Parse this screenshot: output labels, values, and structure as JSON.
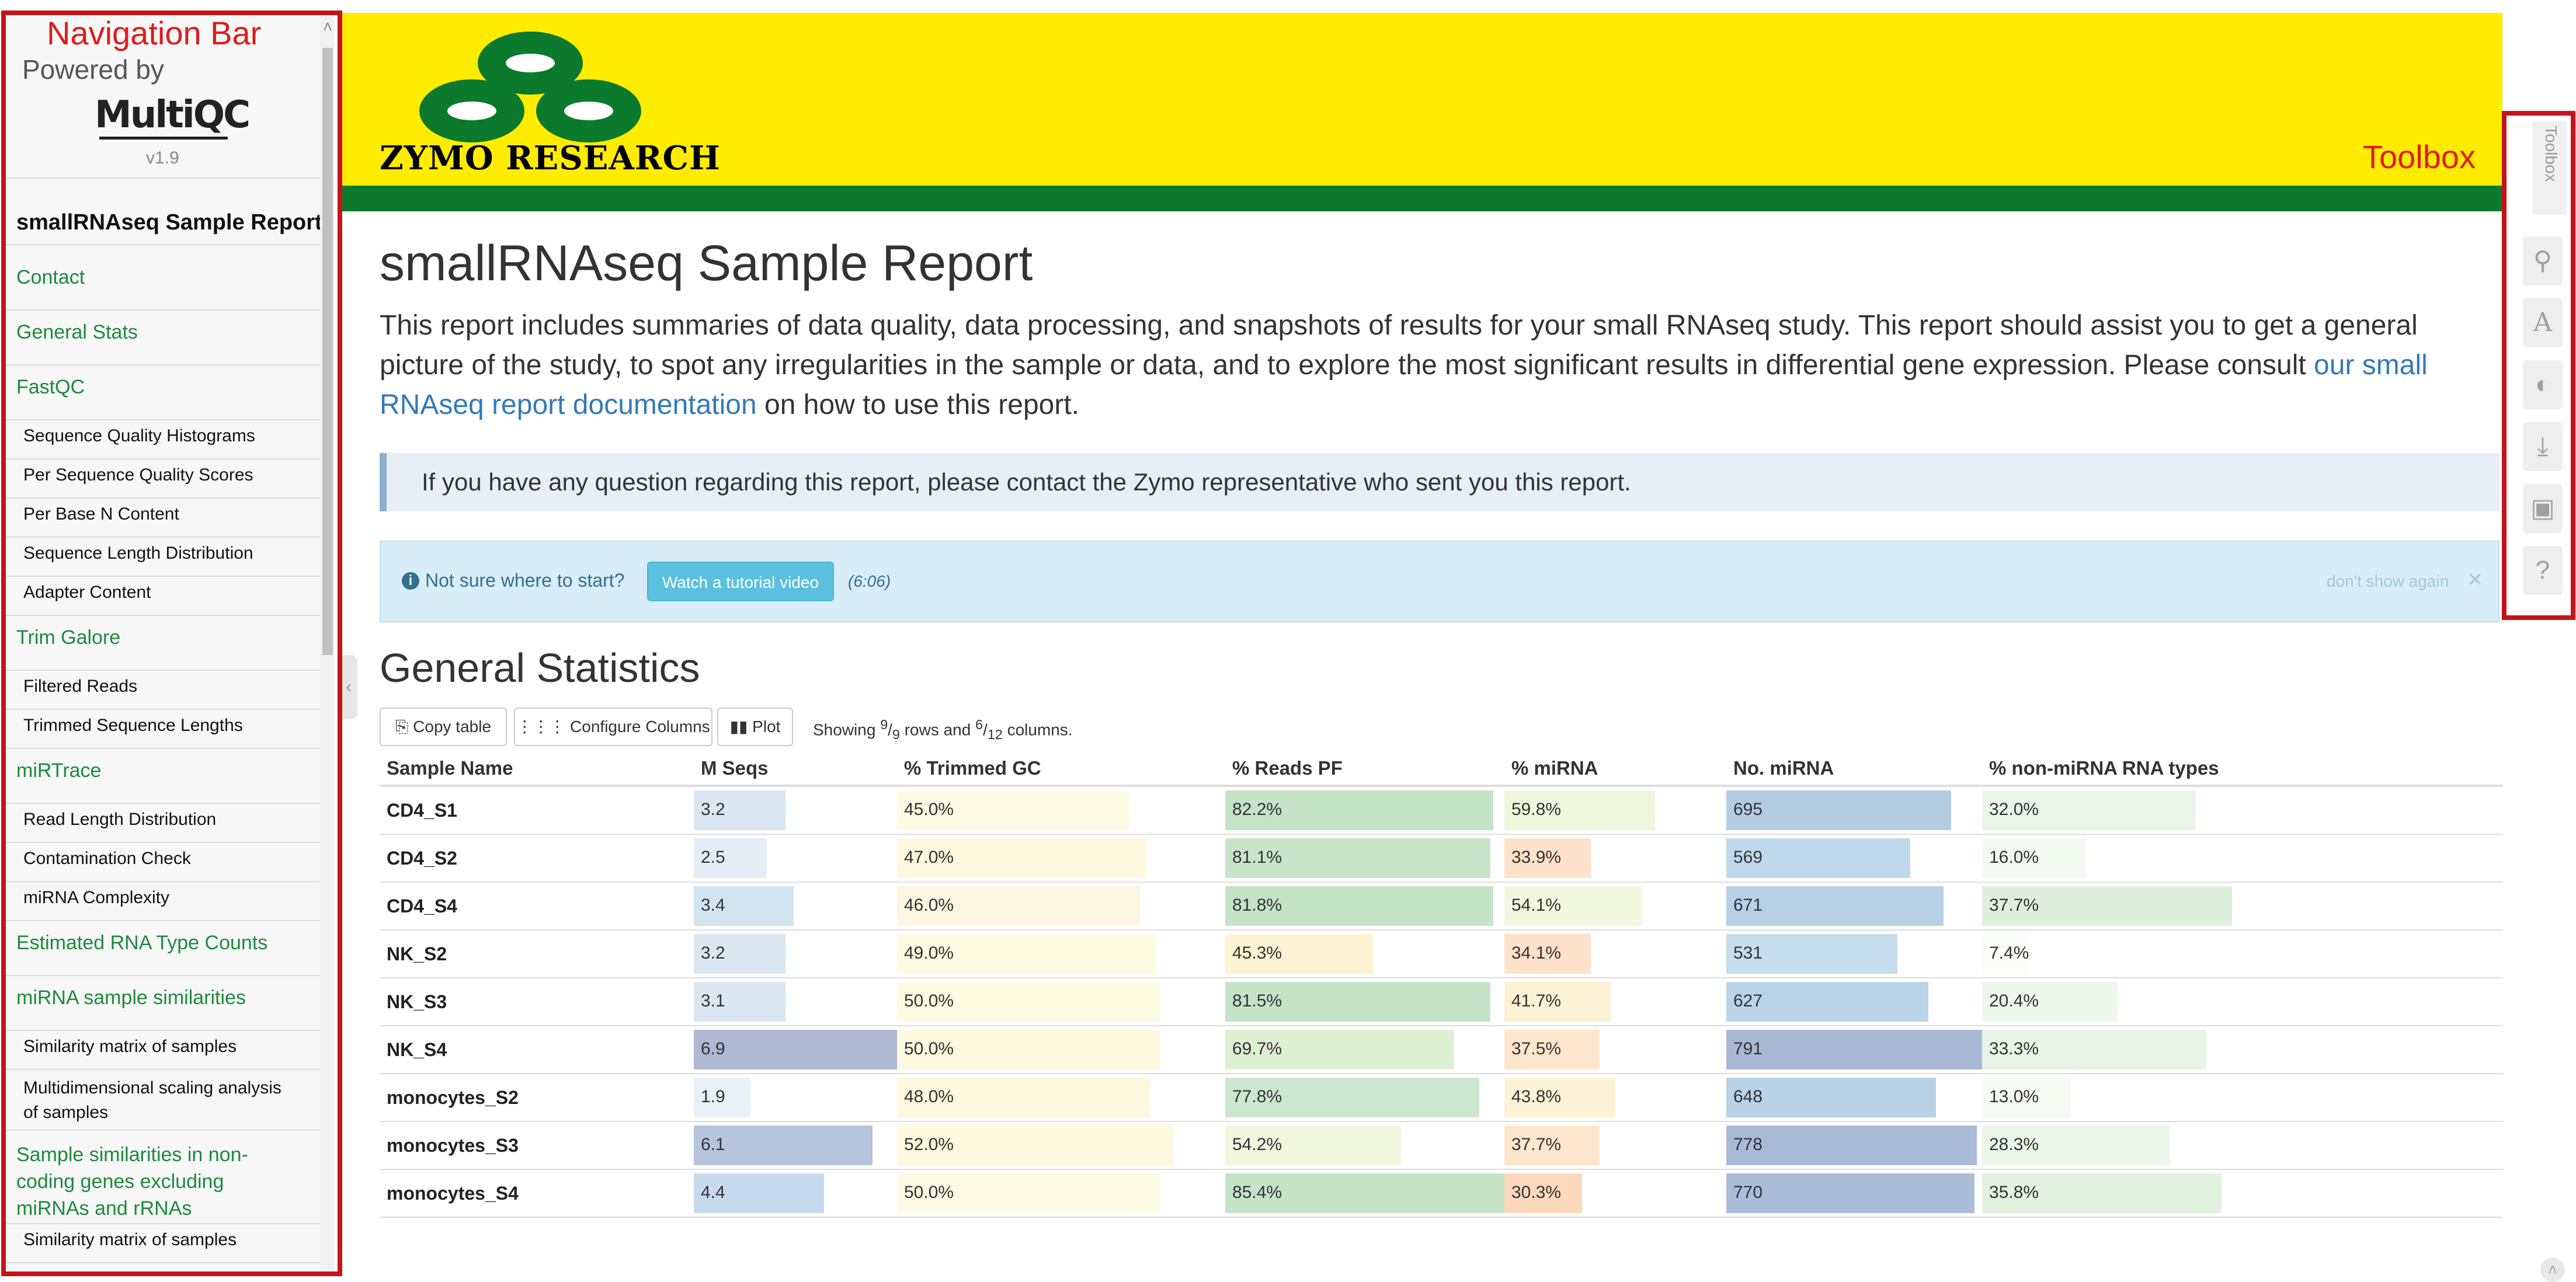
{
  "annotations": {
    "nav_label": "Navigation Bar",
    "toolbox_label": "Toolbox"
  },
  "sidebar": {
    "powered_by": "Powered by",
    "logo_text": "MultiQC",
    "version": "v1.9",
    "report_title": "smallRNAseq Sample Report",
    "items": [
      {
        "label": "Contact",
        "level": 1
      },
      {
        "label": "General Stats",
        "level": 1
      },
      {
        "label": "FastQC",
        "level": 1
      },
      {
        "label": "Sequence Quality Histograms",
        "level": 2
      },
      {
        "label": "Per Sequence Quality Scores",
        "level": 2
      },
      {
        "label": "Per Base N Content",
        "level": 2
      },
      {
        "label": "Sequence Length Distribution",
        "level": 2
      },
      {
        "label": "Adapter Content",
        "level": 2
      },
      {
        "label": "Trim Galore",
        "level": 1
      },
      {
        "label": "Filtered Reads",
        "level": 2
      },
      {
        "label": "Trimmed Sequence Lengths",
        "level": 2
      },
      {
        "label": "miRTrace",
        "level": 1
      },
      {
        "label": "Read Length Distribution",
        "level": 2
      },
      {
        "label": "Contamination Check",
        "level": 2
      },
      {
        "label": "miRNA Complexity",
        "level": 2
      },
      {
        "label": "Estimated RNA Type Counts",
        "level": 1
      },
      {
        "label": "miRNA sample similarities",
        "level": 1
      },
      {
        "label": "Similarity matrix of samples",
        "level": 2
      },
      {
        "label": "Multidimensional scaling analysis of samples",
        "level": 2
      },
      {
        "label": "Sample similarities in non-coding genes excluding miRNAs and rRNAs",
        "level": 1
      },
      {
        "label": "Similarity matrix of samples",
        "level": 2
      }
    ]
  },
  "header": {
    "company": "ZYMO RESEARCH",
    "brand_yellow": "#ffec00",
    "brand_green": "#0b7a2c"
  },
  "main": {
    "title": "smallRNAseq Sample Report",
    "intro_before_link": "This report includes summaries of data quality, data processing, and snapshots of results for your small RNAseq study. This report should assist you to get a general picture of the study, to spot any irregularities in the sample or data, and to explore the most significant results in differential gene expression. Please consult ",
    "intro_link": "our small RNAseq report documentation",
    "intro_after_link": " on how to use this report.",
    "contact_message": "If you have any question regarding this report, please contact the Zymo representative who sent you this report.",
    "tutorial": {
      "question": "Not sure where to start?",
      "button": "Watch a tutorial video",
      "duration": "(6:06)",
      "dismiss": "don't show again",
      "close": "×"
    }
  },
  "general_stats": {
    "title": "General Statistics",
    "buttons": {
      "copy": "Copy table",
      "configure": "Configure Columns",
      "plot": "Plot"
    },
    "showing": {
      "prefix": "Showing ",
      "rows_shown": "9",
      "rows_total": "9",
      "middle": " rows and ",
      "cols_shown": "6",
      "cols_total": "12",
      "suffix": " columns."
    },
    "columns": [
      "Sample Name",
      "M Seqs",
      "% Trimmed GC",
      "% Reads PF",
      "% miRNA",
      "No. miRNA",
      "% non-miRNA RNA types"
    ],
    "rows": [
      {
        "name": "CD4_S1",
        "m_seqs": "3.2",
        "trimmed_gc": "45.0%",
        "reads_pf": "82.2%",
        "mirna_pct": "59.8%",
        "no_mirna": "695",
        "non_mirna": "32.0%"
      },
      {
        "name": "CD4_S2",
        "m_seqs": "2.5",
        "trimmed_gc": "47.0%",
        "reads_pf": "81.1%",
        "mirna_pct": "33.9%",
        "no_mirna": "569",
        "non_mirna": "16.0%"
      },
      {
        "name": "CD4_S4",
        "m_seqs": "3.4",
        "trimmed_gc": "46.0%",
        "reads_pf": "81.8%",
        "mirna_pct": "54.1%",
        "no_mirna": "671",
        "non_mirna": "37.7%"
      },
      {
        "name": "NK_S2",
        "m_seqs": "3.2",
        "trimmed_gc": "49.0%",
        "reads_pf": "45.3%",
        "mirna_pct": "34.1%",
        "no_mirna": "531",
        "non_mirna": "7.4%"
      },
      {
        "name": "NK_S3",
        "m_seqs": "3.1",
        "trimmed_gc": "50.0%",
        "reads_pf": "81.5%",
        "mirna_pct": "41.7%",
        "no_mirna": "627",
        "non_mirna": "20.4%"
      },
      {
        "name": "NK_S4",
        "m_seqs": "6.9",
        "trimmed_gc": "50.0%",
        "reads_pf": "69.7%",
        "mirna_pct": "37.5%",
        "no_mirna": "791",
        "non_mirna": "33.3%"
      },
      {
        "name": "monocytes_S2",
        "m_seqs": "1.9",
        "trimmed_gc": "48.0%",
        "reads_pf": "77.8%",
        "mirna_pct": "43.8%",
        "no_mirna": "648",
        "non_mirna": "13.0%"
      },
      {
        "name": "monocytes_S3",
        "m_seqs": "6.1",
        "trimmed_gc": "52.0%",
        "reads_pf": "54.2%",
        "mirna_pct": "37.7%",
        "no_mirna": "778",
        "non_mirna": "28.3%"
      },
      {
        "name": "monocytes_S4",
        "m_seqs": "4.4",
        "trimmed_gc": "50.0%",
        "reads_pf": "85.4%",
        "mirna_pct": "30.3%",
        "no_mirna": "770",
        "non_mirna": "35.8%"
      }
    ],
    "bar_fill_fraction": {
      "m_seqs": [
        0.45,
        0.36,
        0.49,
        0.45,
        0.45,
        1.0,
        0.28,
        0.88,
        0.64
      ],
      "trimmed_gc": [
        0.71,
        0.76,
        0.74,
        0.79,
        0.8,
        0.8,
        0.77,
        0.84,
        0.8
      ],
      "reads_pf": [
        0.96,
        0.95,
        0.96,
        0.53,
        0.95,
        0.82,
        0.91,
        0.63,
        1.0
      ],
      "mirna_pct": [
        0.68,
        0.39,
        0.62,
        0.39,
        0.48,
        0.43,
        0.5,
        0.43,
        0.35
      ],
      "no_mirna": [
        0.88,
        0.72,
        0.85,
        0.67,
        0.79,
        1.0,
        0.82,
        0.98,
        0.97
      ],
      "non_mirna": [
        0.41,
        0.2,
        0.48,
        0.09,
        0.26,
        0.43,
        0.17,
        0.36,
        0.46
      ]
    },
    "bar_colors": {
      "m_seqs": [
        "#d9e7f3",
        "#e2edf6",
        "#d3e4f1",
        "#d9e7f3",
        "#d9e7f3",
        "#aeb9d2",
        "#e9f1f8",
        "#b5c4dc",
        "#c7d9ec"
      ],
      "trimmed_gc": [
        "#fdfbe3",
        "#fdf8de",
        "#fdf6e0",
        "#fefbe3",
        "#fefbe3",
        "#fdf8de",
        "#fdf8de",
        "#fdf8de",
        "#fdfbe3"
      ],
      "reads_pf": [
        "#c4e3c7",
        "#c8e5ca",
        "#c4e3c7",
        "#fdf3d3",
        "#c4e3c7",
        "#def0d2",
        "#cce7cd",
        "#f1f6df",
        "#c4e3c7"
      ],
      "mirna_pct": [
        "#eef7dc",
        "#fde1c8",
        "#f2f8df",
        "#fde1c8",
        "#fdf1d4",
        "#fde7cc",
        "#fdf2d6",
        "#fde7cc",
        "#fcd8bd"
      ],
      "no_mirna": [
        "#b3cde3",
        "#bed9ea",
        "#b6d0e5",
        "#c5ddec",
        "#bad4e7",
        "#a8b7d3",
        "#b8d2e6",
        "#a9bad6",
        "#aabcd7"
      ],
      "non_mirna": [
        "#e9f5e8",
        "#f2f9f0",
        "#ddf0dc",
        "#fafdf8",
        "#eef7ec",
        "#e7f4e6",
        "#f5faf3",
        "#ebf6ea",
        "#e1f2df"
      ]
    }
  },
  "toolbox": {
    "tab_label": "Toolbox",
    "buttons": [
      "pin-icon",
      "font-icon",
      "eye-slash-icon",
      "download-icon",
      "save-icon",
      "help-icon"
    ]
  }
}
